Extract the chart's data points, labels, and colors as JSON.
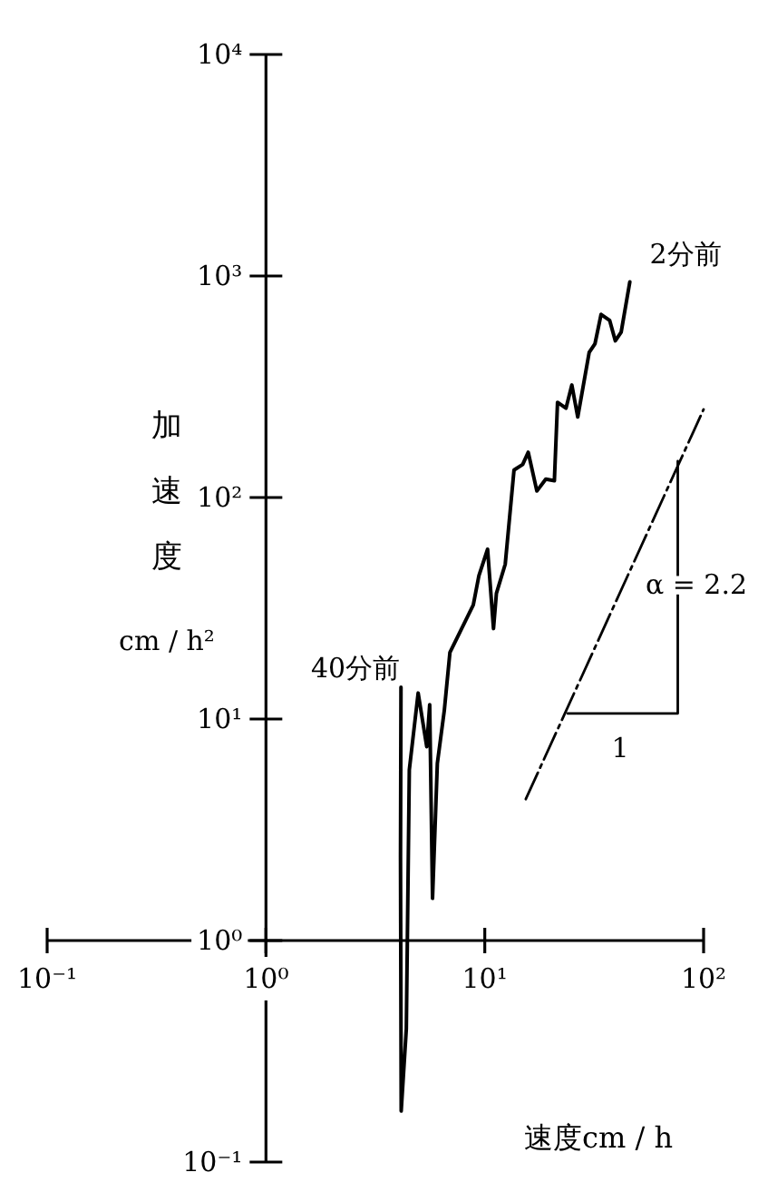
{
  "chart_data": {
    "type": "line",
    "xlabel": "速度cm / h",
    "ylabel": "加速度 cm / h²",
    "log": "xy",
    "xlim": [
      0.1,
      100
    ],
    "ylim": [
      0.1,
      10000
    ],
    "xticks": [
      {
        "value": 0.1,
        "label": "10⁻¹"
      },
      {
        "value": 1,
        "label": "10⁰"
      },
      {
        "value": 10,
        "label": "10¹"
      },
      {
        "value": 100,
        "label": "10²"
      }
    ],
    "yticks": [
      {
        "value": 0.1,
        "label": "10⁻¹"
      },
      {
        "value": 1,
        "label": "10⁰"
      },
      {
        "value": 10,
        "label": "10¹"
      },
      {
        "value": 100,
        "label": "10²"
      },
      {
        "value": 1000,
        "label": "10³"
      },
      {
        "value": 10000,
        "label": "10⁴"
      }
    ],
    "series": [
      {
        "color": "#000000",
        "x": [
          4.14,
          4.13,
          4.12,
          4.15,
          4.38,
          4.52,
          4.96,
          5.43,
          5.6,
          5.77,
          6.07,
          6.53,
          6.93,
          7.84,
          8.86,
          9.4,
          10.3,
          10.96,
          11.3,
          12.4,
          13.6,
          14.9,
          15.8,
          17.3,
          19,
          20.8,
          21.5,
          23.5,
          25,
          26.6,
          30,
          31.9,
          34,
          37.2,
          39.5,
          42,
          46
        ],
        "values": [
          13.9,
          5.9,
          2.37,
          0.17,
          0.4,
          5.9,
          13.1,
          7.5,
          11.6,
          1.55,
          6.3,
          10.9,
          20,
          25.6,
          32.7,
          44.4,
          58.4,
          25.6,
          36.9,
          50,
          133,
          141,
          160,
          107,
          121,
          119,
          269,
          253,
          322,
          231,
          452,
          495,
          671,
          631,
          510,
          558,
          940
        ]
      },
      {
        "color": "#000000",
        "line_style": "dashed",
        "x": [
          15.4,
          100
        ],
        "values": [
          4.35,
          250
        ]
      },
      {
        "color": "#000000",
        "x": [
          23.9,
          76.2,
          76.2
        ],
        "values": [
          10.6,
          10.6,
          146
        ]
      }
    ],
    "annotations": [
      "40分前",
      "2分前",
      "α = 2.2",
      "1"
    ]
  }
}
